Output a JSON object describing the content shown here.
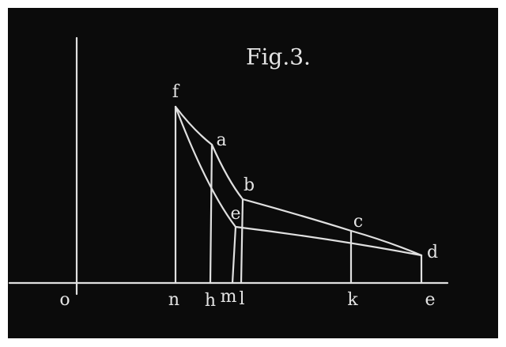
{
  "title": "Fig.3.",
  "point_labels": [
    "f",
    "a",
    "b",
    "e",
    "c",
    "d"
  ],
  "axis_labels": [
    "o",
    "n",
    "h",
    "m",
    "l",
    "k",
    "e"
  ]
}
